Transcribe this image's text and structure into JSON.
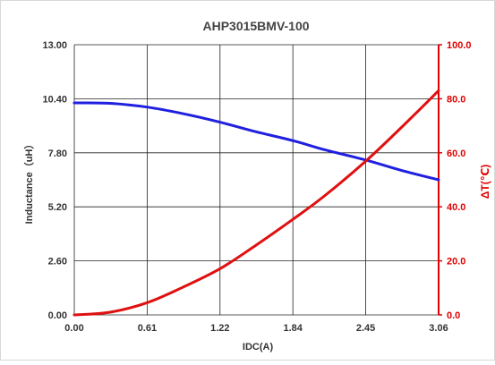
{
  "chart_data": {
    "type": "line",
    "title": "AHP3015BMV-100",
    "xlabel": "IDC(A)",
    "ylabel_left": "Inductance（uH）",
    "ylabel_right": "ΔT(℃)",
    "x_ticks": [
      "0.00",
      "0.61",
      "1.22",
      "1.84",
      "2.45",
      "3.06"
    ],
    "y_left_ticks": [
      "0.00",
      "2.60",
      "5.20",
      "7.80",
      "10.40",
      "13.00"
    ],
    "y_right_ticks": [
      "0.0",
      "20.0",
      "40.0",
      "60.0",
      "80.0",
      "100.0"
    ],
    "xlim": [
      0,
      3.06
    ],
    "ylim_left": [
      0,
      13
    ],
    "ylim_right": [
      0,
      100
    ],
    "grid": true,
    "colors": {
      "inductance": "#1f1fe0",
      "temperature": "#e01010",
      "right_axis": "#e00000",
      "grid": "#222222"
    },
    "series": [
      {
        "axis": "left",
        "x": [
          0.0,
          0.3,
          0.61,
          0.9,
          1.22,
          1.5,
          1.84,
          2.1,
          2.45,
          2.75,
          3.06
        ],
        "values": [
          10.2,
          10.18,
          10.0,
          9.7,
          9.28,
          8.85,
          8.38,
          7.95,
          7.45,
          6.95,
          6.5
        ]
      },
      {
        "axis": "right",
        "x": [
          0.0,
          0.3,
          0.61,
          0.9,
          1.22,
          1.5,
          1.84,
          2.1,
          2.45,
          2.75,
          3.06
        ],
        "values": [
          0.0,
          1.0,
          4.5,
          10.0,
          17.0,
          25.0,
          35.5,
          44.0,
          57.0,
          69.5,
          83.0
        ]
      }
    ]
  }
}
